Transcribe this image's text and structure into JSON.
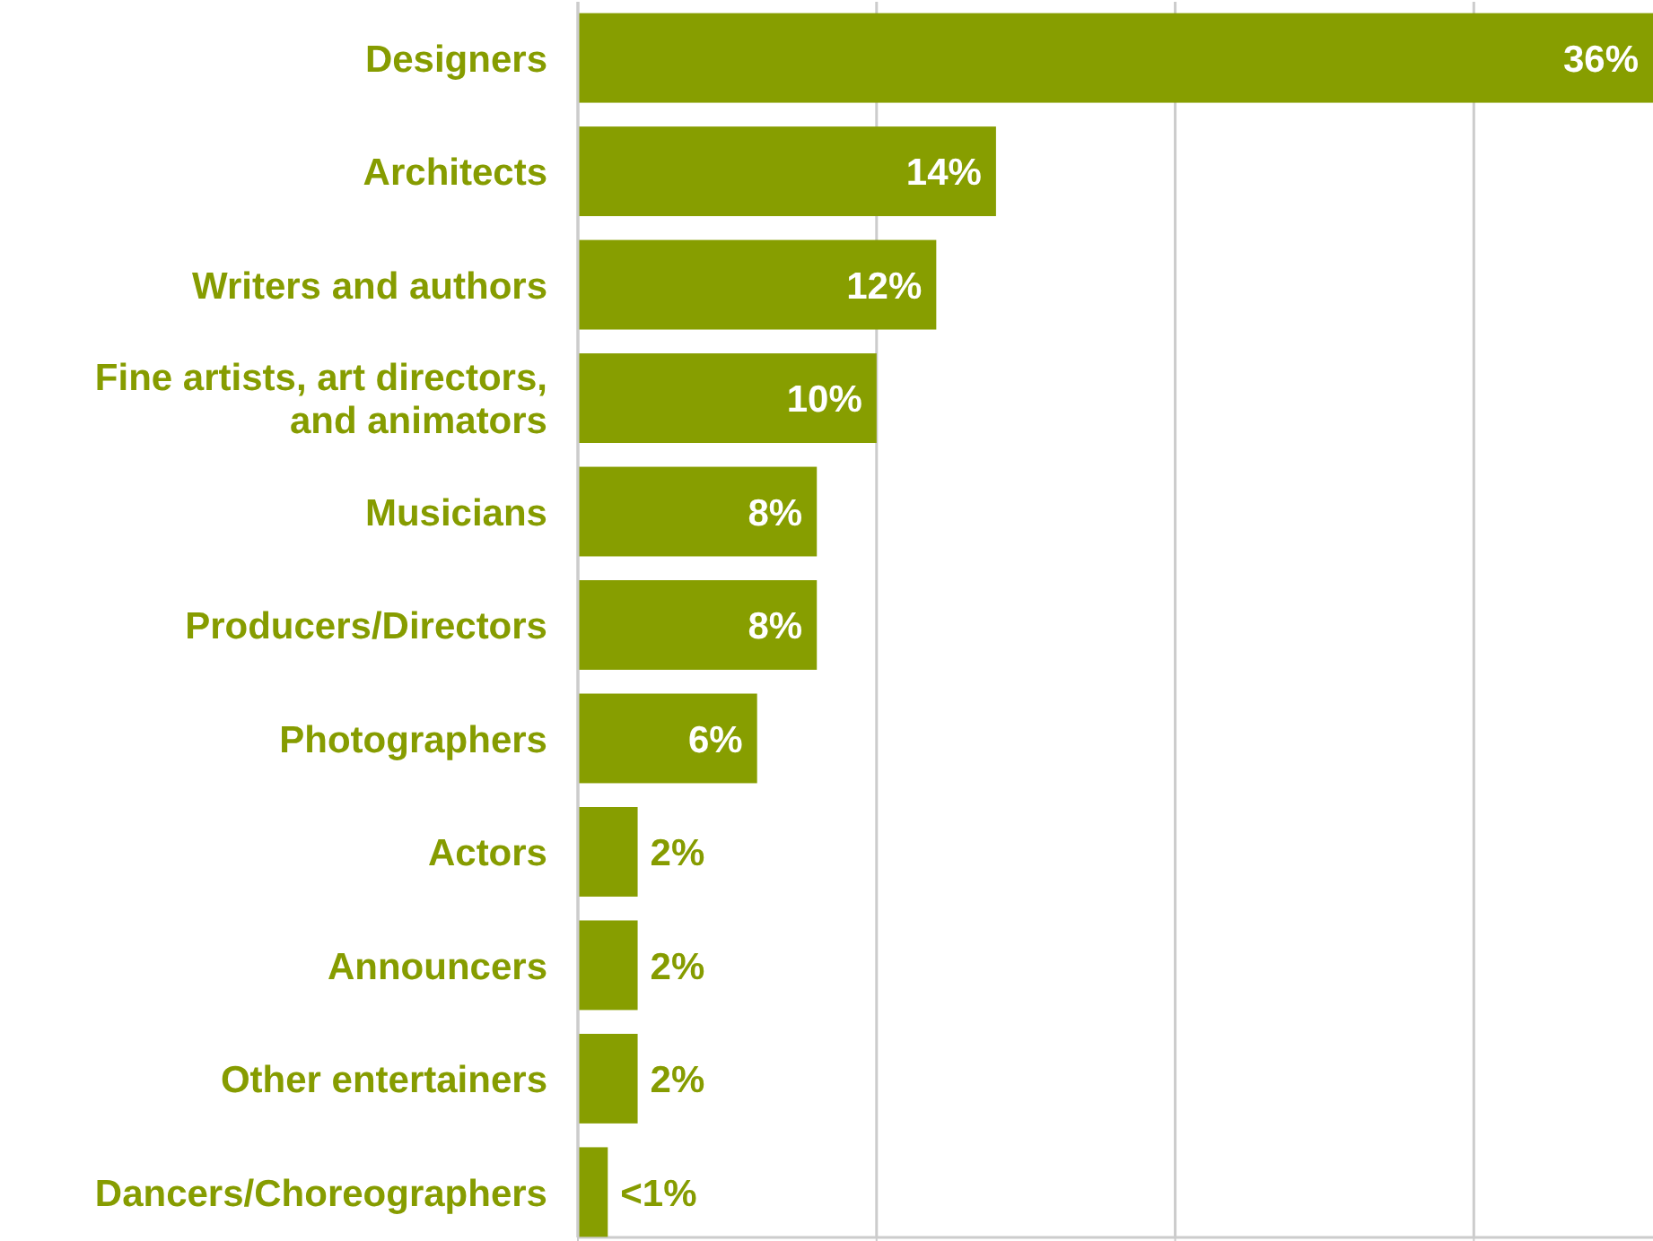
{
  "chart_data": {
    "type": "bar",
    "orientation": "horizontal",
    "categories": [
      "Designers",
      "Architects",
      "Writers and authors",
      "Fine artists, art directors, and animators",
      "Musicians",
      "Producers/Directors",
      "Photographers",
      "Actors",
      "Announcers",
      "Other entertainers",
      "Dancers/Choreographers"
    ],
    "values": [
      36,
      14,
      12,
      10,
      8,
      8,
      6,
      2,
      2,
      2,
      1
    ],
    "value_labels": [
      "36%",
      "14%",
      "12%",
      "10%",
      "8%",
      "8%",
      "6%",
      "2%",
      "2%",
      "2%",
      "<1%"
    ],
    "color": "#879e00",
    "xlim": [
      0,
      36
    ],
    "xticks": [
      {
        "value": 0,
        "label": null
      },
      {
        "value": 10,
        "label": null
      },
      {
        "value": 20,
        "label": null
      },
      {
        "value": 30,
        "label": null
      }
    ],
    "grid": "x",
    "tick_labels": "y"
  }
}
